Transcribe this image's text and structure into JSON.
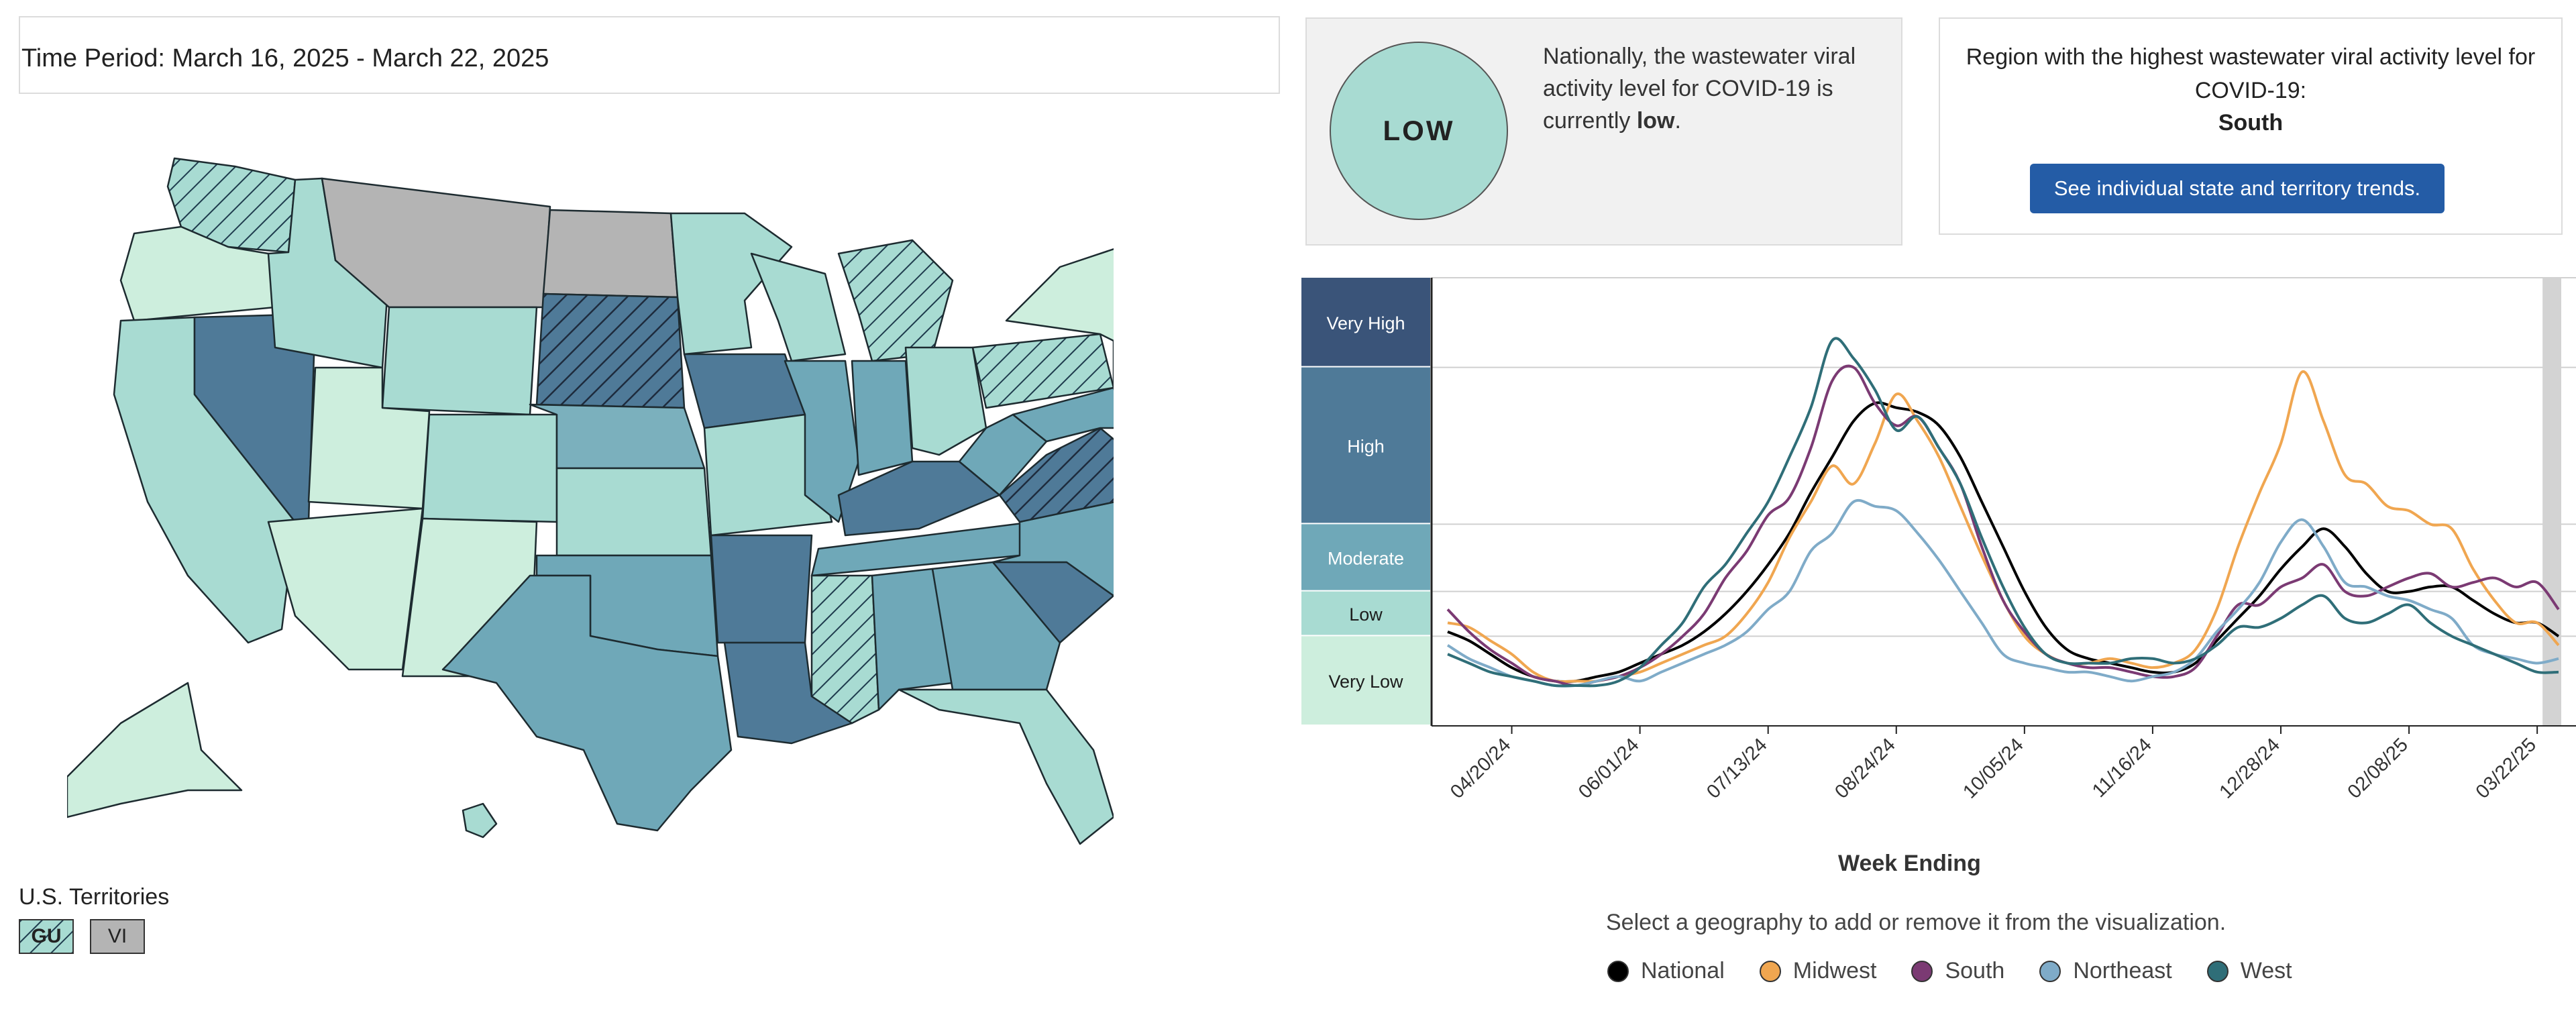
{
  "period": "Time Period: March 16, 2025 - March 22, 2025",
  "national": {
    "level": "LOW",
    "text_prefix": "Nationally, the wastewater viral activity level for COVID-19 is currently",
    "text_level": "low",
    "text_suffix": "."
  },
  "region": {
    "heading": "Region with the highest wastewater viral activity level for COVID-19:",
    "name": "South",
    "button": "See individual state and territory trends."
  },
  "territories": {
    "label": "U.S. Territories",
    "items": [
      "GU",
      "VI"
    ]
  },
  "colors": {
    "very_high": "#3a5479",
    "high": "#4f7a98",
    "moderate": "#6fa8b8",
    "low": "#a8dbd2",
    "very_low": "#cdeedd",
    "no_data": "#b4b4b4",
    "button": "#245ca6"
  },
  "chart_data": {
    "type": "line",
    "title": "",
    "xlabel": "Week Ending",
    "ylabel": "",
    "x_tick_labels": [
      "04/20/24",
      "06/01/24",
      "07/13/24",
      "08/24/24",
      "10/05/24",
      "11/16/24",
      "12/28/24",
      "02/08/25",
      "03/22/25"
    ],
    "levels": [
      "Very High",
      "High",
      "Moderate",
      "Low",
      "Very Low"
    ],
    "level_thresholds": [
      0,
      2,
      3,
      4.5,
      8
    ],
    "ylim": [
      0,
      10
    ],
    "x": [
      0,
      1,
      2,
      3,
      4,
      5,
      6,
      7,
      8,
      9,
      10,
      11,
      12,
      13,
      14,
      15,
      16,
      17,
      18,
      19,
      20,
      21,
      22,
      23,
      24,
      25,
      26,
      27,
      28,
      29,
      30,
      31,
      32,
      33,
      34,
      35,
      36,
      37,
      38,
      39,
      40,
      41,
      42,
      43,
      44,
      45,
      46,
      47,
      48,
      49,
      50,
      51,
      52
    ],
    "series": [
      {
        "name": "National",
        "color": "#000000",
        "values": [
          2.1,
          1.9,
          1.6,
          1.3,
          1.1,
          1.0,
          1.0,
          1.1,
          1.2,
          1.4,
          1.6,
          1.8,
          2.1,
          2.5,
          3.0,
          3.6,
          4.3,
          5.2,
          6.0,
          6.8,
          7.2,
          7.1,
          7.0,
          6.7,
          6.0,
          5.0,
          4.0,
          3.0,
          2.2,
          1.7,
          1.5,
          1.4,
          1.3,
          1.2,
          1.2,
          1.4,
          1.9,
          2.4,
          2.9,
          3.5,
          4.0,
          4.4,
          4.0,
          3.4,
          3.0,
          3.0,
          3.1,
          3.1,
          2.8,
          2.5,
          2.3,
          2.3,
          2.0
        ]
      },
      {
        "name": "Midwest",
        "color": "#f0a650",
        "values": [
          2.3,
          2.2,
          1.9,
          1.6,
          1.2,
          1.0,
          1.0,
          1.0,
          1.1,
          1.2,
          1.4,
          1.6,
          1.8,
          2.0,
          2.5,
          3.2,
          4.2,
          5.0,
          5.8,
          5.4,
          6.3,
          7.4,
          6.8,
          6.0,
          4.9,
          3.8,
          2.8,
          2.0,
          1.6,
          1.4,
          1.4,
          1.5,
          1.4,
          1.3,
          1.4,
          1.7,
          2.6,
          4.0,
          5.2,
          6.3,
          7.9,
          6.8,
          5.6,
          5.4,
          4.9,
          4.8,
          4.5,
          4.4,
          3.5,
          2.8,
          2.3,
          2.3,
          1.8
        ]
      },
      {
        "name": "South",
        "color": "#7b3a73",
        "values": [
          2.6,
          2.1,
          1.7,
          1.4,
          1.1,
          1.0,
          0.9,
          1.0,
          1.1,
          1.3,
          1.6,
          2.0,
          2.5,
          3.3,
          3.9,
          4.7,
          5.1,
          6.2,
          7.7,
          8.0,
          7.2,
          6.7,
          6.9,
          6.2,
          5.4,
          4.0,
          2.8,
          2.1,
          1.6,
          1.4,
          1.3,
          1.3,
          1.2,
          1.1,
          1.1,
          1.3,
          2.0,
          2.7,
          2.7,
          3.1,
          3.3,
          3.6,
          3.0,
          2.9,
          3.1,
          3.3,
          3.4,
          3.1,
          3.2,
          3.3,
          3.1,
          3.2,
          2.6
        ]
      },
      {
        "name": "Northeast",
        "color": "#7fabc8",
        "values": [
          1.8,
          1.5,
          1.3,
          1.1,
          1.0,
          0.9,
          0.9,
          1.0,
          1.1,
          1.0,
          1.2,
          1.4,
          1.6,
          1.8,
          2.1,
          2.6,
          3.0,
          3.9,
          4.3,
          5.0,
          4.9,
          4.8,
          4.3,
          3.7,
          3.0,
          2.3,
          1.6,
          1.4,
          1.3,
          1.2,
          1.2,
          1.1,
          1.0,
          1.1,
          1.2,
          1.5,
          2.1,
          2.6,
          3.2,
          4.1,
          4.6,
          4.0,
          3.2,
          3.1,
          2.9,
          2.8,
          2.6,
          2.4,
          1.8,
          1.6,
          1.5,
          1.4,
          1.5
        ]
      },
      {
        "name": "West",
        "color": "#2f6e78",
        "values": [
          1.6,
          1.4,
          1.2,
          1.1,
          1.0,
          0.9,
          0.9,
          0.9,
          1.0,
          1.3,
          1.8,
          2.3,
          3.1,
          3.6,
          4.3,
          5.0,
          6.0,
          7.1,
          8.6,
          8.2,
          7.5,
          6.6,
          6.9,
          6.2,
          5.4,
          4.2,
          3.1,
          2.2,
          1.6,
          1.4,
          1.4,
          1.4,
          1.5,
          1.5,
          1.4,
          1.5,
          1.8,
          2.2,
          2.2,
          2.4,
          2.7,
          2.9,
          2.4,
          2.3,
          2.5,
          2.7,
          2.3,
          2.0,
          1.8,
          1.6,
          1.4,
          1.2,
          1.2
        ]
      }
    ],
    "highlight_last_week": true
  },
  "chart_text": {
    "week_label": "Week Ending",
    "select_hint": "Select a geography to add or remove it from the visualization."
  }
}
